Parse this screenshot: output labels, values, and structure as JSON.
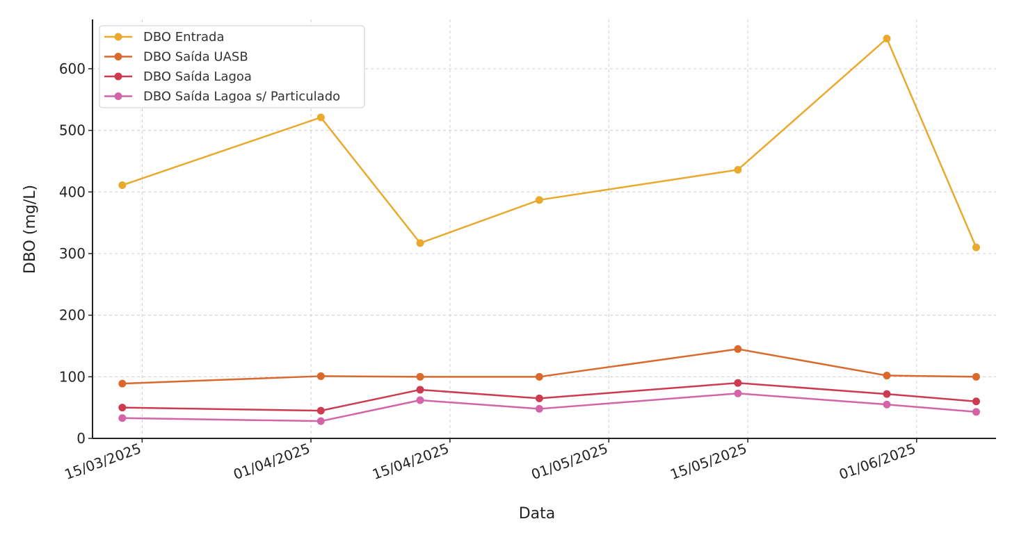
{
  "chart_data": {
    "type": "line",
    "title": "",
    "xlabel": "Data",
    "ylabel": "DBO (mg/L)",
    "ylim": [
      0,
      680
    ],
    "xlim": [
      "2025-03-10",
      "2025-06-09"
    ],
    "grid": true,
    "legend_position": "top-left",
    "y_ticks": [
      {
        "value": 0,
        "label": "0"
      },
      {
        "value": 100,
        "label": "100"
      },
      {
        "value": 200,
        "label": "200"
      },
      {
        "value": 300,
        "label": "300"
      },
      {
        "value": 400,
        "label": "400"
      },
      {
        "value": 500,
        "label": "500"
      },
      {
        "value": 600,
        "label": "600"
      }
    ],
    "x_ticks": [
      {
        "date": "2025-03-15",
        "label": "15/03/2025"
      },
      {
        "date": "2025-04-01",
        "label": "01/04/2025"
      },
      {
        "date": "2025-04-15",
        "label": "15/04/2025"
      },
      {
        "date": "2025-05-01",
        "label": "01/05/2025"
      },
      {
        "date": "2025-05-15",
        "label": "15/05/2025"
      },
      {
        "date": "2025-06-01",
        "label": "01/06/2025"
      }
    ],
    "x": [
      "2025-03-13",
      "2025-04-02",
      "2025-04-12",
      "2025-04-24",
      "2025-05-14",
      "2025-05-29",
      "2025-06-07"
    ],
    "series": [
      {
        "name": "DBO Entrada",
        "color": "#E8A92C",
        "values": [
          411,
          521,
          317,
          387,
          436,
          649,
          310
        ]
      },
      {
        "name": "DBO Saída UASB",
        "color": "#D9692C",
        "values": [
          89,
          101,
          100,
          100,
          145,
          102,
          100
        ]
      },
      {
        "name": "DBO Saída Lagoa",
        "color": "#CC3B4F",
        "values": [
          50,
          45,
          79,
          65,
          90,
          72,
          60
        ]
      },
      {
        "name": "DBO Saída Lagoa s/ Particulado",
        "color": "#D464A8",
        "values": [
          33,
          28,
          62,
          48,
          73,
          55,
          43
        ]
      }
    ]
  }
}
